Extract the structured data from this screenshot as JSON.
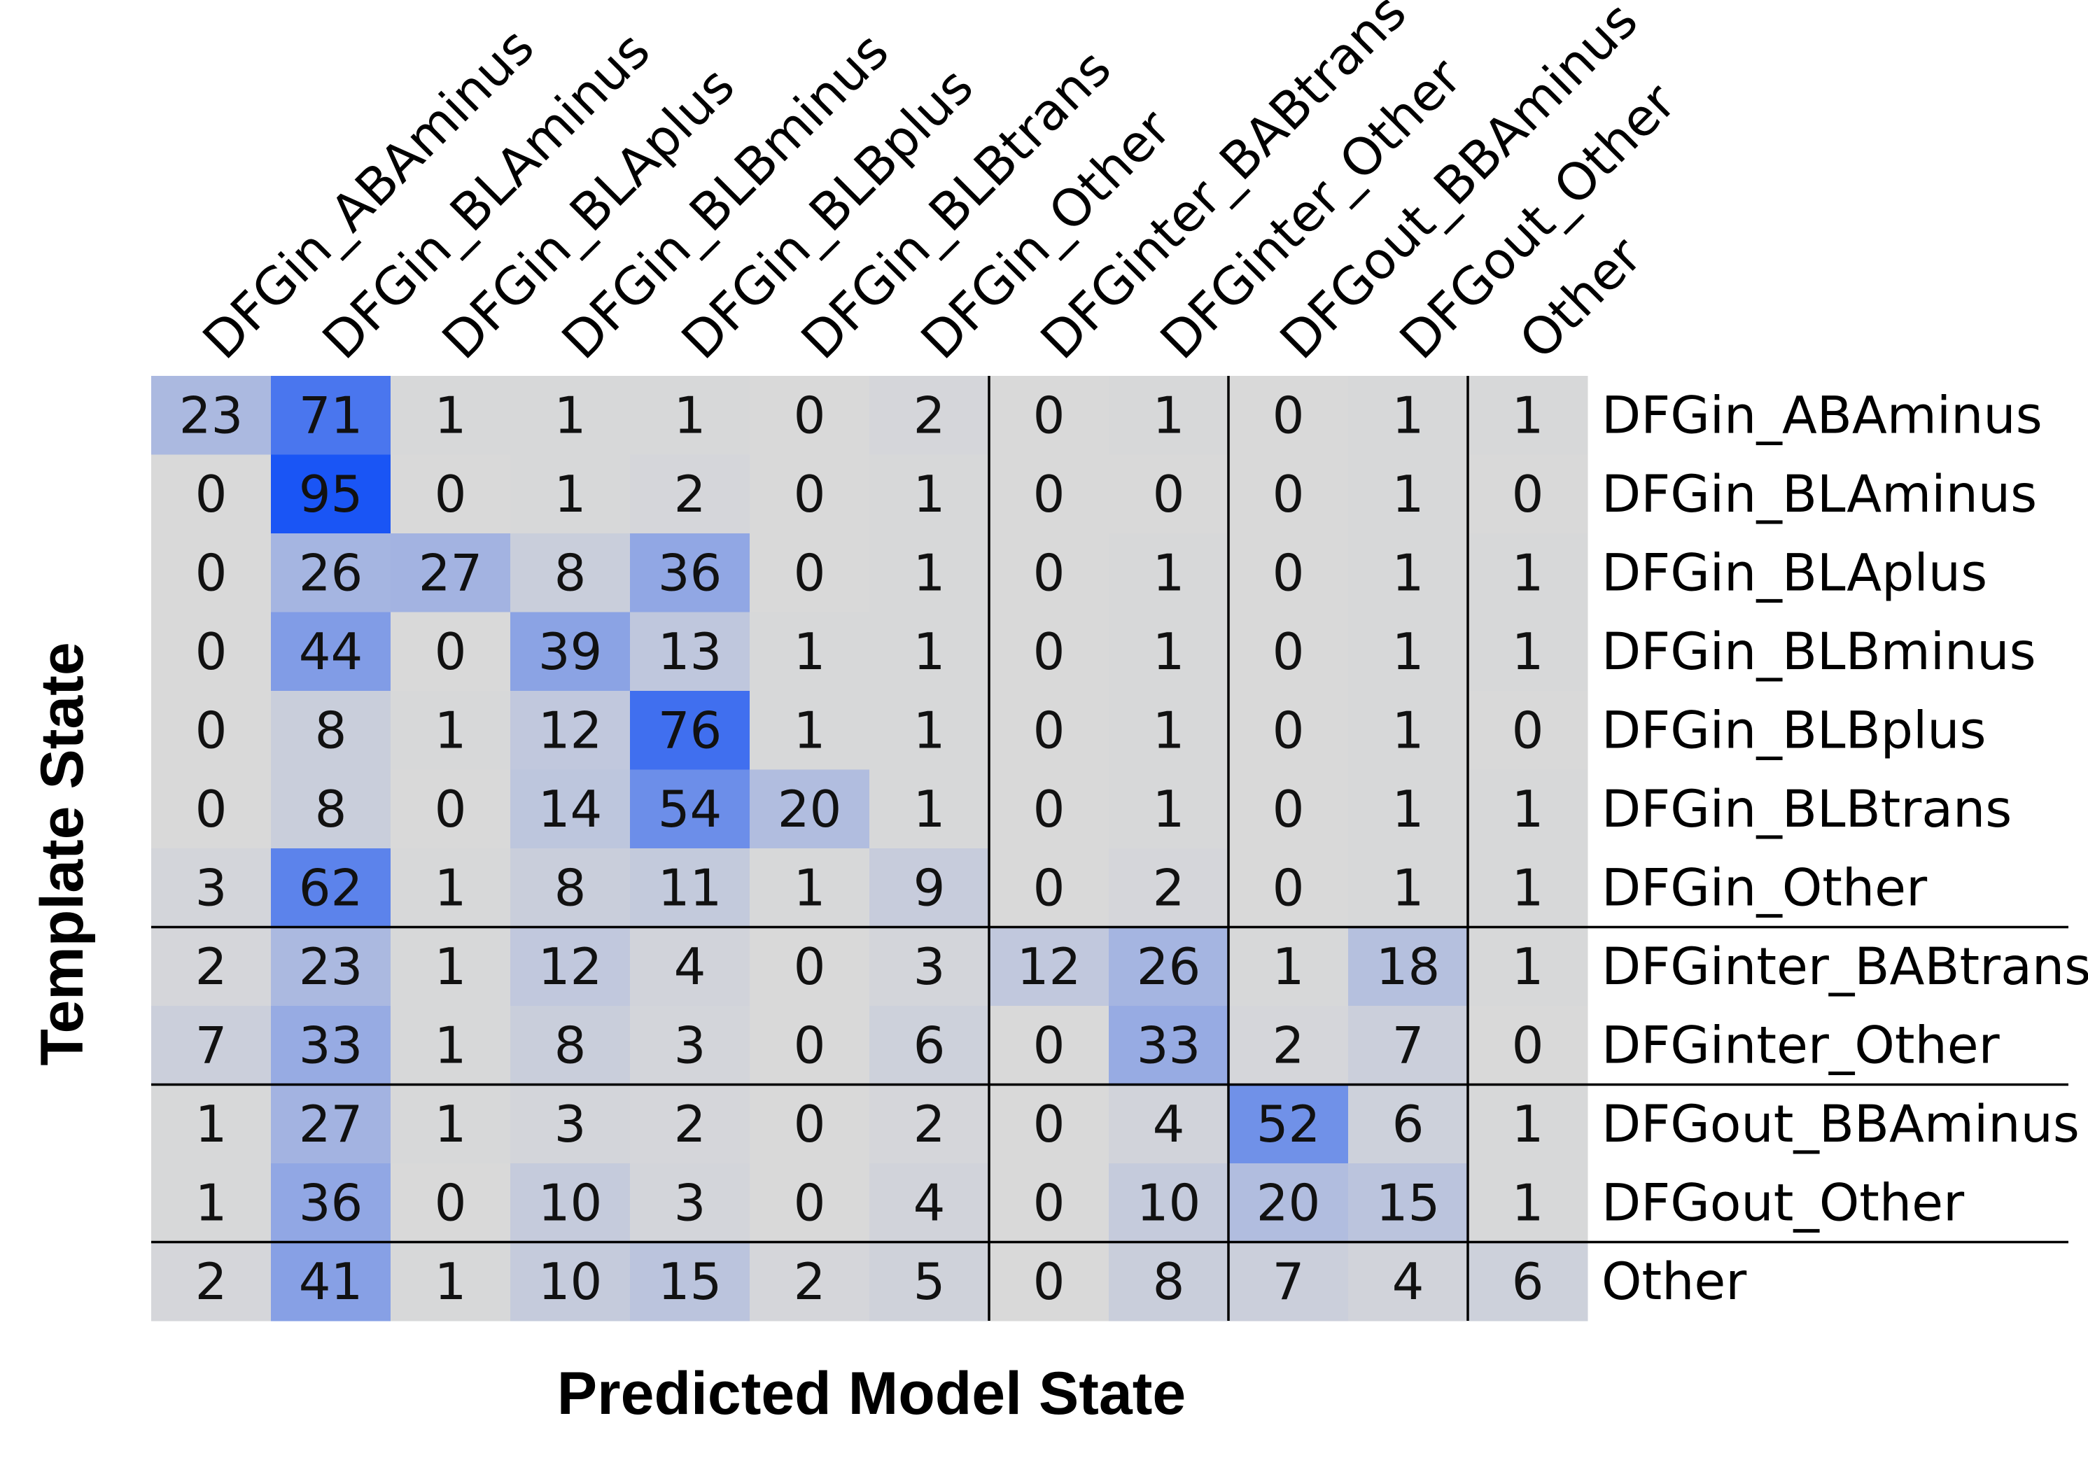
{
  "chart_data": {
    "type": "heatmap",
    "xlabel": "Predicted Model State",
    "ylabel": "Template State",
    "columns": [
      "DFGin_ABAminus",
      "DFGin_BLAminus",
      "DFGin_BLAplus",
      "DFGin_BLBminus",
      "DFGin_BLBplus",
      "DFGin_BLBtrans",
      "DFGin_Other",
      "DFGinter_BABtrans",
      "DFGinter_Other",
      "DFGout_BBAminus",
      "DFGout_Other",
      "Other"
    ],
    "rows": [
      "DFGin_ABAminus",
      "DFGin_BLAminus",
      "DFGin_BLAplus",
      "DFGin_BLBminus",
      "DFGin_BLBplus",
      "DFGin_BLBtrans",
      "DFGin_Other",
      "DFGinter_BABtrans",
      "DFGinter_Other",
      "DFGout_BBAminus",
      "DFGout_Other",
      "Other"
    ],
    "values": [
      [
        23,
        71,
        1,
        1,
        1,
        0,
        2,
        0,
        1,
        0,
        1,
        1
      ],
      [
        0,
        95,
        0,
        1,
        2,
        0,
        1,
        0,
        0,
        0,
        1,
        0
      ],
      [
        0,
        26,
        27,
        8,
        36,
        0,
        1,
        0,
        1,
        0,
        1,
        1
      ],
      [
        0,
        44,
        0,
        39,
        13,
        1,
        1,
        0,
        1,
        0,
        1,
        1
      ],
      [
        0,
        8,
        1,
        12,
        76,
        1,
        1,
        0,
        1,
        0,
        1,
        0
      ],
      [
        0,
        8,
        0,
        14,
        54,
        20,
        1,
        0,
        1,
        0,
        1,
        1
      ],
      [
        3,
        62,
        1,
        8,
        11,
        1,
        9,
        0,
        2,
        0,
        1,
        1
      ],
      [
        2,
        23,
        1,
        12,
        4,
        0,
        3,
        12,
        26,
        1,
        18,
        1
      ],
      [
        7,
        33,
        1,
        8,
        3,
        0,
        6,
        0,
        33,
        2,
        7,
        0
      ],
      [
        1,
        27,
        1,
        3,
        2,
        0,
        2,
        0,
        4,
        52,
        6,
        1
      ],
      [
        1,
        36,
        0,
        10,
        3,
        0,
        4,
        0,
        10,
        20,
        15,
        1
      ],
      [
        2,
        41,
        1,
        10,
        15,
        2,
        5,
        0,
        8,
        7,
        4,
        6
      ]
    ],
    "value_range": [
      0,
      95
    ],
    "color_low": "#d9d9d9",
    "color_high": "#1a55f5",
    "group_boundaries_after_index": [
      6,
      8,
      10
    ],
    "row_labels_position": "right",
    "column_labels_position": "top"
  }
}
